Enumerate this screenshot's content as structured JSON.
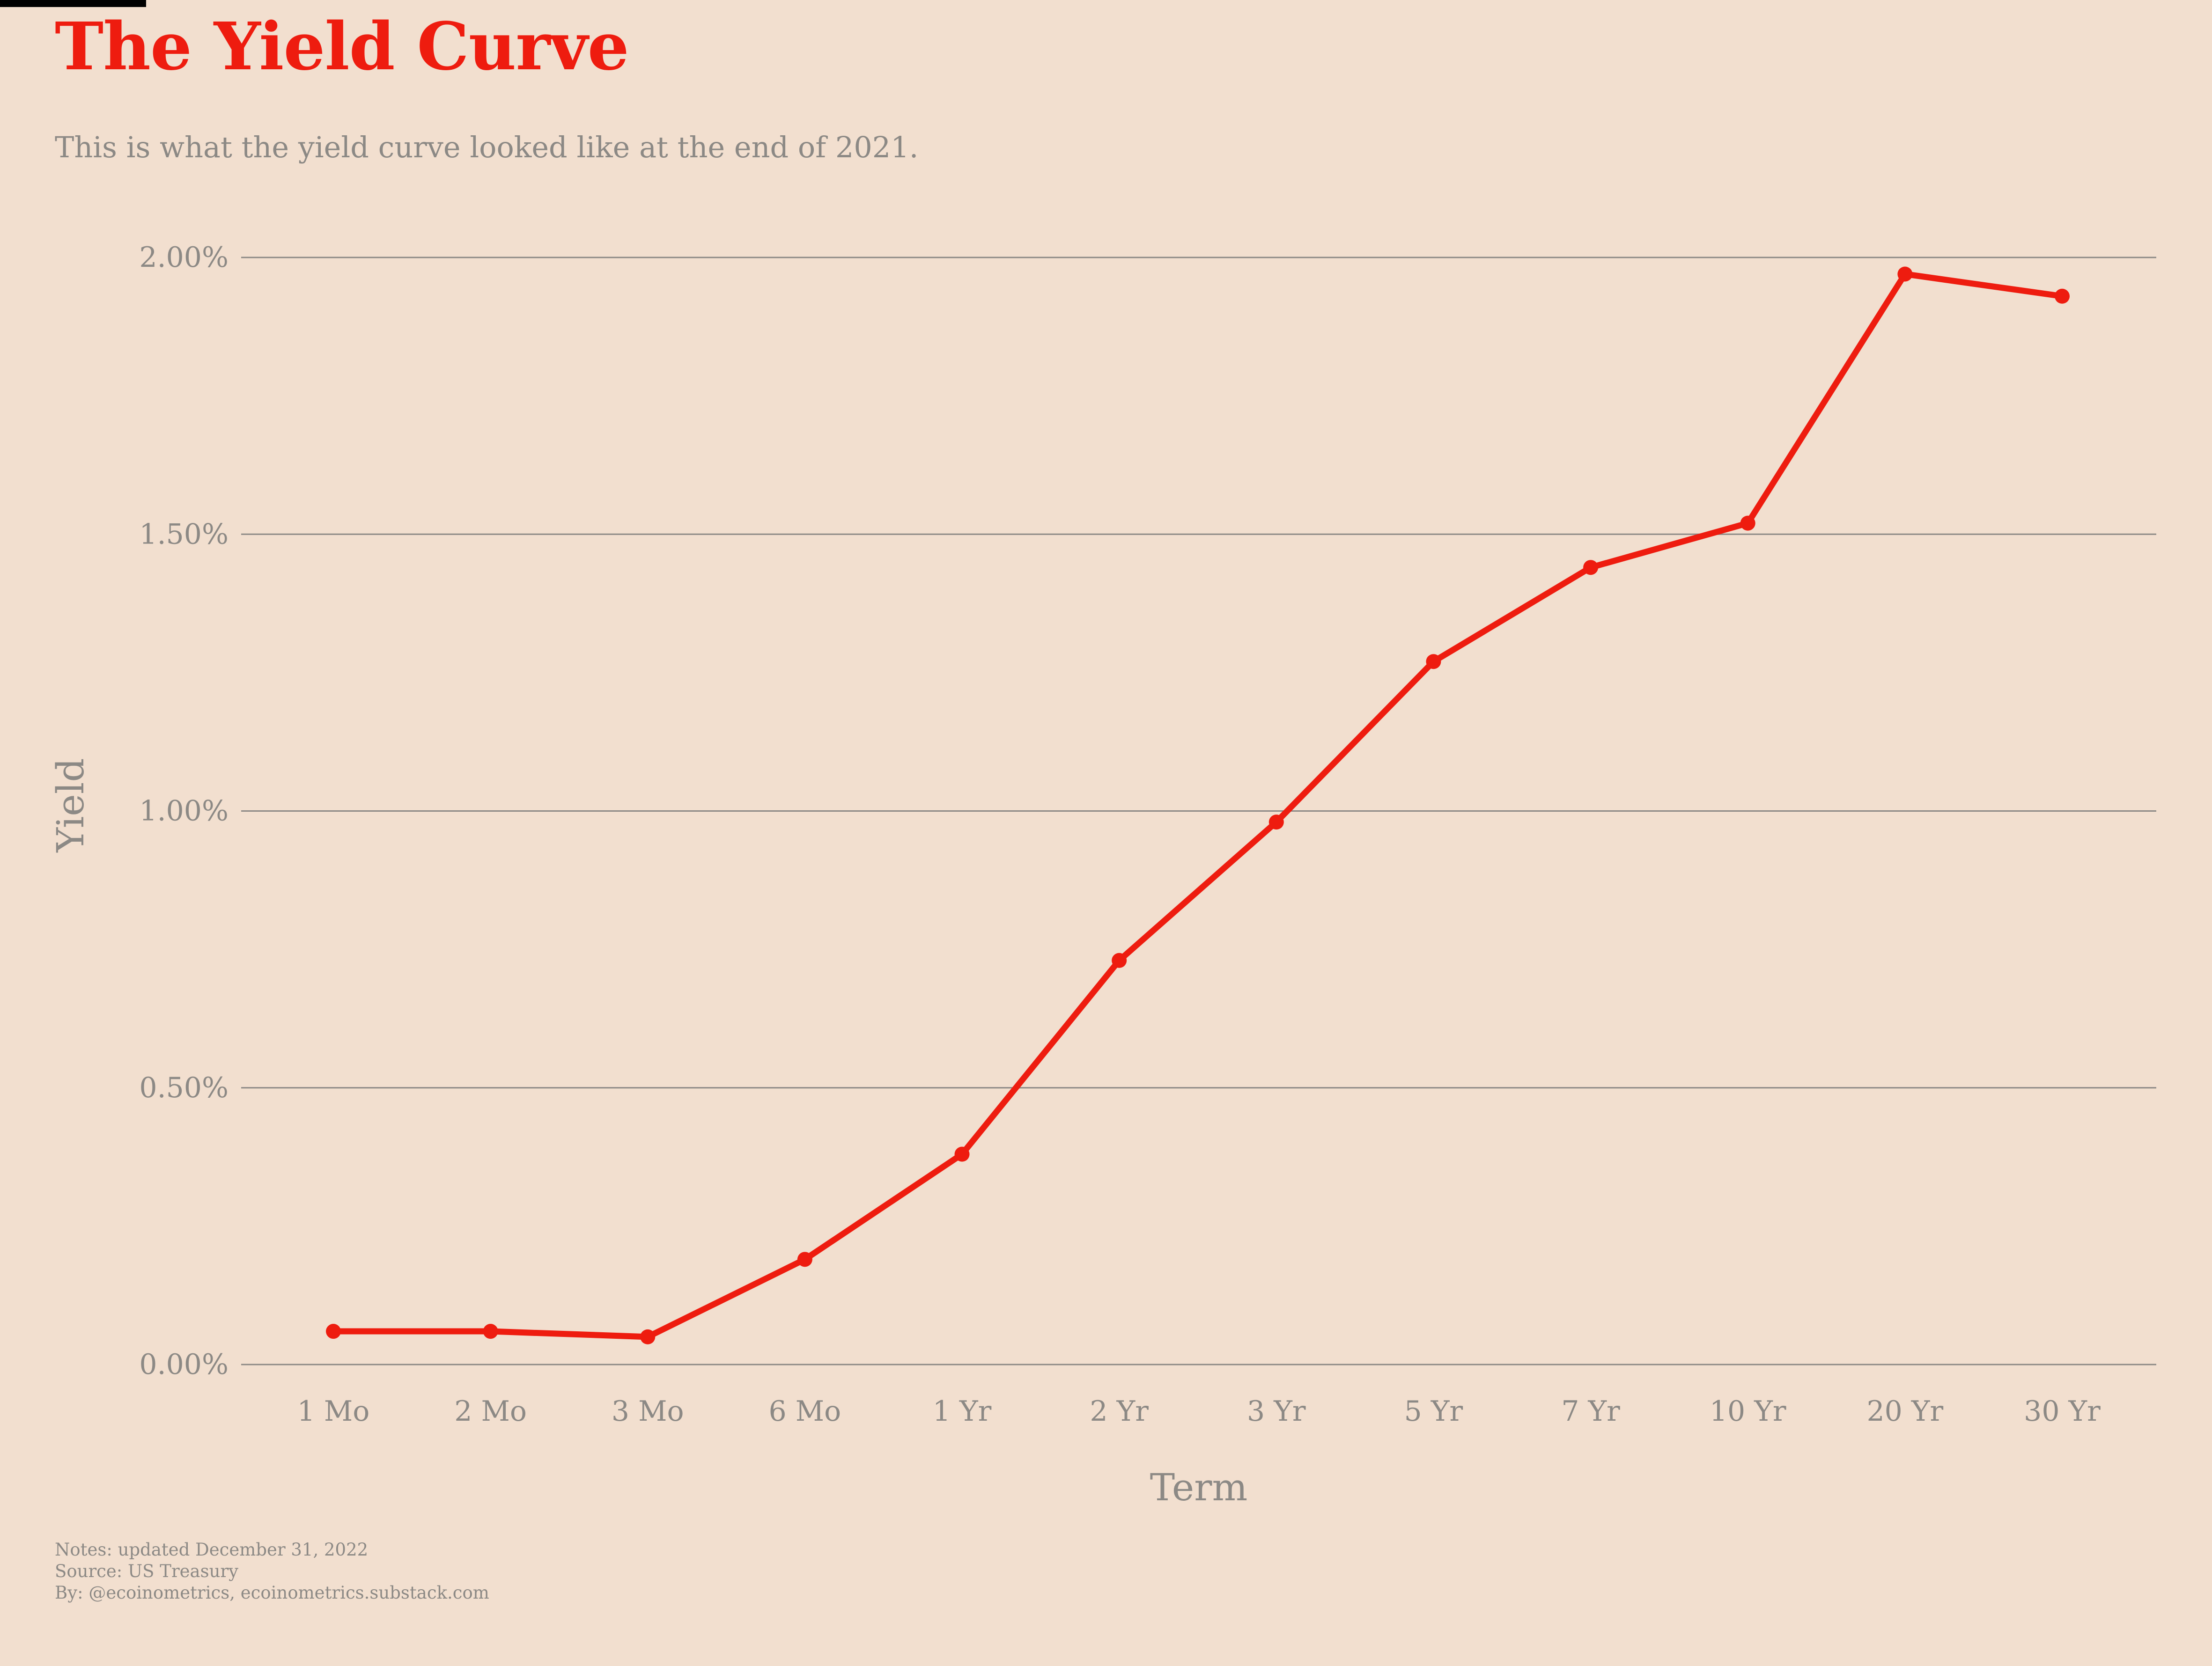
{
  "header": {
    "title": "The Yield Curve",
    "subtitle": "This is what the yield curve looked like at the end of 2021."
  },
  "footer": {
    "notes": "Notes: updated December 31, 2022",
    "source": "Source: US Treasury",
    "by": "By: @ecoinometrics, ecoinometrics.substack.com"
  },
  "colors": {
    "background": "#f2dfcf",
    "line": "#ee1c0f",
    "title": "#ee1c0f",
    "muted_text": "#8c8985",
    "grid": "#8c8985"
  },
  "chart_data": {
    "type": "line",
    "xlabel": "Term",
    "ylabel": "Yield",
    "categories": [
      "1 Mo",
      "2 Mo",
      "3 Mo",
      "6 Mo",
      "1 Yr",
      "2 Yr",
      "3 Yr",
      "5 Yr",
      "7 Yr",
      "10 Yr",
      "20 Yr",
      "30 Yr"
    ],
    "series": [
      {
        "values": [
          0.06,
          0.06,
          0.05,
          0.19,
          0.38,
          0.73,
          0.98,
          1.27,
          1.44,
          1.52,
          1.97,
          1.93
        ],
        "markers": true
      }
    ],
    "y_ticks": [
      0.0,
      0.5,
      1.0,
      1.5,
      2.0
    ],
    "y_tick_labels": [
      "0.00%",
      "0.50%",
      "1.00%",
      "1.50%",
      "2.00%"
    ],
    "ylim": [
      0.0,
      2.0
    ],
    "grid": "horizontal",
    "legend": "none"
  }
}
